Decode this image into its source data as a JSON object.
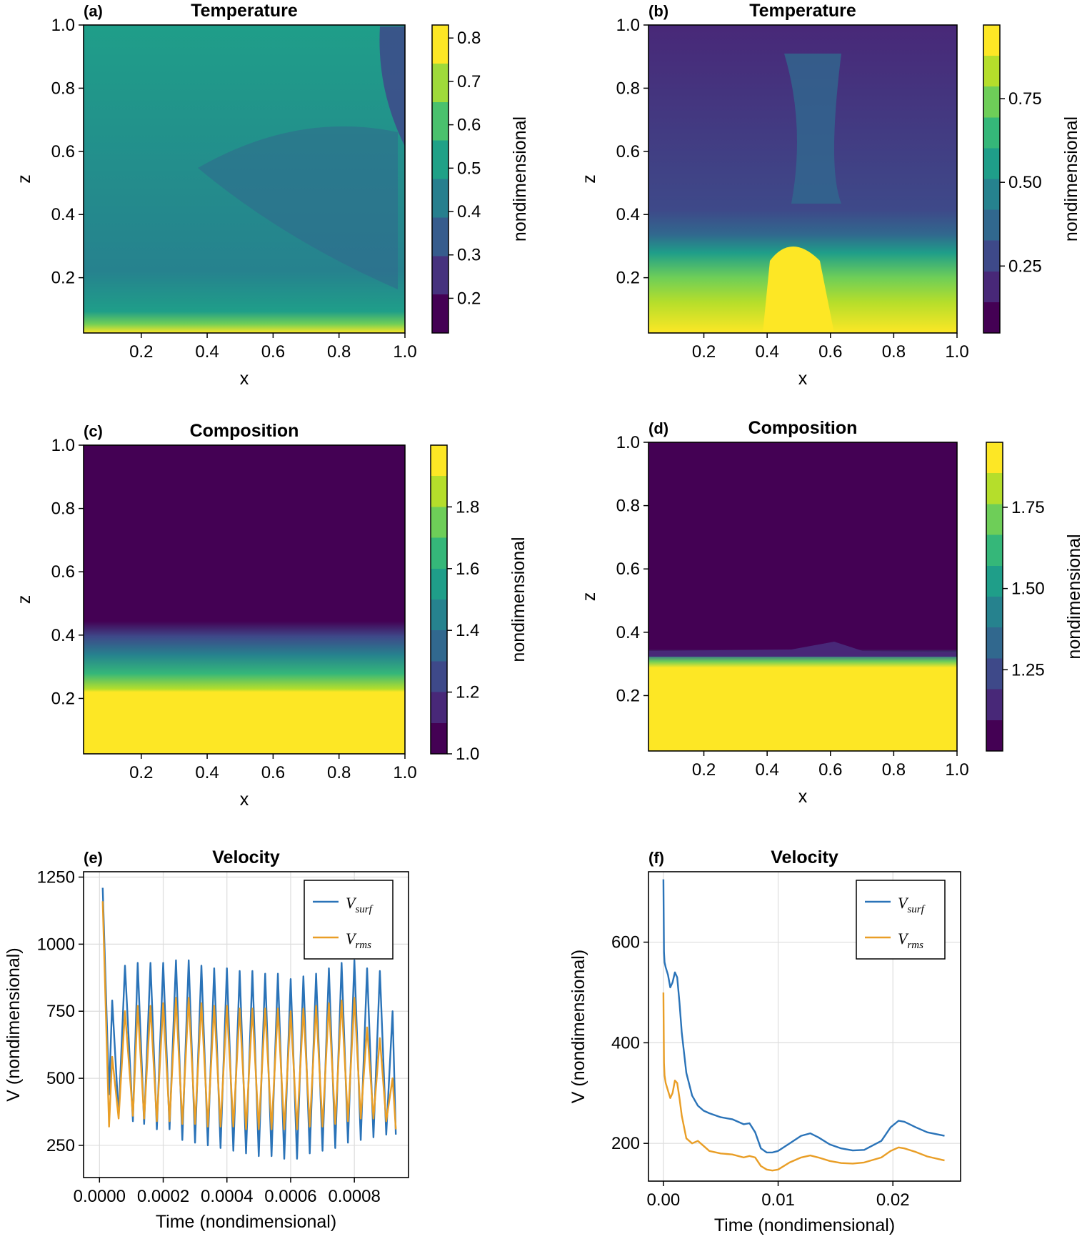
{
  "palette": [
    "#440154",
    "#482878",
    "#3e4989",
    "#31688e",
    "#26828e",
    "#1f9e89",
    "#35b779",
    "#6ece58",
    "#b5de2b",
    "#fde725"
  ],
  "series_colors": {
    "V_surf": "#2a73b8",
    "V_rms": "#e99e26"
  },
  "axis_labels": {
    "x": "x",
    "z": "z",
    "colorbar": "nondimensional",
    "time": "Time (nondimensional)",
    "velocity": "V (nondimensional)"
  },
  "chart_data": [
    {
      "id": "a",
      "type": "heatmap",
      "panel_label": "(a)",
      "title": "Temperature",
      "xlim": [
        0.025,
        1.0
      ],
      "ylim": [
        0.025,
        1.0
      ],
      "x_ticks": [
        "0.2",
        "0.4",
        "0.6",
        "0.8",
        "1.0"
      ],
      "y_ticks": [
        "0.2",
        "0.4",
        "0.6",
        "0.8",
        "1.0"
      ],
      "colorbar_range": [
        0.12,
        0.83
      ],
      "colorbar_ticks": [
        "0.2",
        "0.3",
        "0.4",
        "0.5",
        "0.6",
        "0.7",
        "0.8"
      ],
      "description": "mostly 0.4-0.6; cool (0.1-0.3) strip at top right; hot thin layer at bottom"
    },
    {
      "id": "b",
      "type": "heatmap",
      "panel_label": "(b)",
      "title": "Temperature",
      "xlim": [
        0.025,
        1.0
      ],
      "ylim": [
        0.025,
        1.0
      ],
      "x_ticks": [
        "0.2",
        "0.4",
        "0.6",
        "0.8",
        "1.0"
      ],
      "y_ticks": [
        "0.2",
        "0.4",
        "0.6",
        "0.8",
        "1.0"
      ],
      "colorbar_range": [
        0.05,
        0.97
      ],
      "colorbar_ticks": [
        "0.25",
        "0.50",
        "0.75"
      ],
      "description": "cool upper half (~0.2-0.3) with warm plume at x~0.7; hot (0.8-0.95) lower layer below z~0.3"
    },
    {
      "id": "c",
      "type": "heatmap",
      "panel_label": "(c)",
      "title": "Composition",
      "xlim": [
        0.025,
        1.0
      ],
      "ylim": [
        0.025,
        1.0
      ],
      "x_ticks": [
        "0.2",
        "0.4",
        "0.6",
        "0.8",
        "1.0"
      ],
      "y_ticks": [
        "0.2",
        "0.4",
        "0.6",
        "0.8",
        "1.0"
      ],
      "colorbar_range": [
        1.0,
        2.0
      ],
      "colorbar_ticks": [
        "1.0",
        "1.2",
        "1.4",
        "1.6",
        "1.8"
      ],
      "description": "value 1.0 above z~0.45; gradient 1.0-2.0 from z~0.45 to 0.22; 2.0 below z~0.22"
    },
    {
      "id": "d",
      "type": "heatmap",
      "panel_label": "(d)",
      "title": "Composition",
      "xlim": [
        0.025,
        1.0
      ],
      "ylim": [
        0.025,
        1.0
      ],
      "x_ticks": [
        "0.2",
        "0.4",
        "0.6",
        "0.8",
        "1.0"
      ],
      "y_ticks": [
        "0.2",
        "0.4",
        "0.6",
        "0.8",
        "1.0"
      ],
      "colorbar_range": [
        1.0,
        1.95
      ],
      "colorbar_ticks": [
        "1.25",
        "1.50",
        "1.75"
      ],
      "description": "value 1.0 above z~0.33; sharp transition; ~1.95 below z~0.3"
    },
    {
      "id": "e",
      "type": "line",
      "panel_label": "(e)",
      "title": "Velocity",
      "xlabel": "Time (nondimensional)",
      "ylabel": "V (nondimensional)",
      "xlim": [
        -5e-05,
        0.00097
      ],
      "ylim": [
        130,
        1270
      ],
      "x_ticks": [
        0.0,
        0.0002,
        0.0004,
        0.0006,
        0.0008
      ],
      "x_tick_labels": [
        "0.0000",
        "0.0002",
        "0.0004",
        "0.0006",
        "0.0008"
      ],
      "y_ticks": [
        250,
        500,
        750,
        1000,
        1250
      ],
      "grid": true,
      "legend": "top-right",
      "series": [
        {
          "key": "V_surf",
          "name": "V",
          "subscript": "surf",
          "x": [
            1e-05,
            3e-05,
            4e-05,
            6e-05,
            8e-05,
            0.000105,
            0.00012,
            0.00014,
            0.00016,
            0.00018,
            0.0002,
            0.00022,
            0.00024,
            0.00026,
            0.00028,
            0.0003,
            0.00032,
            0.00034,
            0.00036,
            0.00038,
            0.0004,
            0.00042,
            0.00044,
            0.00046,
            0.00048,
            0.0005,
            0.00052,
            0.00054,
            0.00056,
            0.00058,
            0.0006,
            0.00062,
            0.00064,
            0.00066,
            0.00068,
            0.0007,
            0.00072,
            0.00074,
            0.00076,
            0.00078,
            0.0008,
            0.00082,
            0.00084,
            0.00086,
            0.00088,
            0.0009,
            0.00092,
            0.00093
          ],
          "y": [
            1210,
            440,
            790,
            360,
            920,
            340,
            930,
            330,
            930,
            310,
            930,
            310,
            940,
            270,
            940,
            260,
            920,
            250,
            910,
            240,
            910,
            230,
            900,
            220,
            900,
            210,
            890,
            210,
            890,
            200,
            870,
            200,
            880,
            220,
            890,
            230,
            910,
            240,
            930,
            260,
            940,
            270,
            910,
            280,
            900,
            290,
            750,
            290
          ]
        },
        {
          "key": "V_rms",
          "name": "V",
          "subscript": "rms",
          "x": [
            1e-05,
            3e-05,
            4e-05,
            6e-05,
            8e-05,
            0.000105,
            0.00012,
            0.00014,
            0.00016,
            0.00018,
            0.0002,
            0.00022,
            0.00024,
            0.00026,
            0.00028,
            0.0003,
            0.00032,
            0.00034,
            0.00036,
            0.00038,
            0.0004,
            0.00042,
            0.00044,
            0.00046,
            0.00048,
            0.0005,
            0.00052,
            0.00054,
            0.00056,
            0.00058,
            0.0006,
            0.00062,
            0.00064,
            0.00066,
            0.00068,
            0.0007,
            0.00072,
            0.00074,
            0.00076,
            0.00078,
            0.0008,
            0.00082,
            0.00084,
            0.00086,
            0.00088,
            0.0009,
            0.00092,
            0.00093
          ],
          "y": [
            1160,
            320,
            580,
            350,
            750,
            360,
            770,
            350,
            770,
            340,
            780,
            340,
            800,
            330,
            800,
            330,
            780,
            320,
            770,
            320,
            770,
            320,
            760,
            310,
            760,
            310,
            760,
            310,
            760,
            310,
            750,
            310,
            760,
            320,
            770,
            320,
            780,
            330,
            790,
            340,
            800,
            350,
            690,
            350,
            650,
            340,
            500,
            310
          ]
        }
      ]
    },
    {
      "id": "f",
      "type": "line",
      "panel_label": "(f)",
      "title": "Velocity",
      "xlabel": "Time (nondimensional)",
      "ylabel": "V (nondimensional)",
      "xlim": [
        -0.0013,
        0.0259
      ],
      "ylim": [
        125,
        740
      ],
      "x_ticks": [
        0.0,
        0.01,
        0.02
      ],
      "x_tick_labels": [
        "0.00",
        "0.01",
        "0.02"
      ],
      "y_ticks": [
        200,
        400,
        600
      ],
      "grid": true,
      "legend": "top-right",
      "series": [
        {
          "key": "V_surf",
          "name": "V",
          "subscript": "surf",
          "x": [
            0.0,
            5e-05,
            0.0001,
            0.0002,
            0.0004,
            0.0006,
            0.0008,
            0.001,
            0.0012,
            0.0014,
            0.0016,
            0.002,
            0.0025,
            0.003,
            0.0035,
            0.004,
            0.005,
            0.006,
            0.007,
            0.0075,
            0.008,
            0.0085,
            0.009,
            0.0095,
            0.01,
            0.011,
            0.012,
            0.0128,
            0.0135,
            0.0145,
            0.0155,
            0.0165,
            0.0175,
            0.019,
            0.0198,
            0.0205,
            0.021,
            0.022,
            0.023,
            0.0245
          ],
          "y": [
            725,
            580,
            560,
            550,
            535,
            510,
            520,
            540,
            530,
            480,
            420,
            340,
            295,
            275,
            265,
            260,
            252,
            248,
            238,
            240,
            222,
            190,
            182,
            182,
            185,
            200,
            215,
            220,
            212,
            198,
            190,
            186,
            187,
            205,
            232,
            245,
            243,
            232,
            222,
            215
          ]
        },
        {
          "key": "V_rms",
          "name": "V",
          "subscript": "rms",
          "x": [
            0.0,
            5e-05,
            0.0001,
            0.0002,
            0.0004,
            0.0006,
            0.0008,
            0.001,
            0.0012,
            0.0014,
            0.0016,
            0.002,
            0.0025,
            0.003,
            0.0035,
            0.004,
            0.005,
            0.006,
            0.007,
            0.0075,
            0.008,
            0.0085,
            0.009,
            0.0095,
            0.01,
            0.011,
            0.012,
            0.0128,
            0.0135,
            0.0145,
            0.0155,
            0.0165,
            0.0175,
            0.019,
            0.0198,
            0.0205,
            0.021,
            0.022,
            0.023,
            0.0245
          ],
          "y": [
            500,
            360,
            335,
            320,
            305,
            290,
            300,
            325,
            320,
            290,
            255,
            210,
            200,
            205,
            195,
            185,
            180,
            178,
            172,
            175,
            172,
            155,
            148,
            146,
            148,
            162,
            172,
            176,
            172,
            165,
            161,
            160,
            162,
            172,
            185,
            192,
            190,
            183,
            174,
            166
          ]
        }
      ]
    }
  ]
}
